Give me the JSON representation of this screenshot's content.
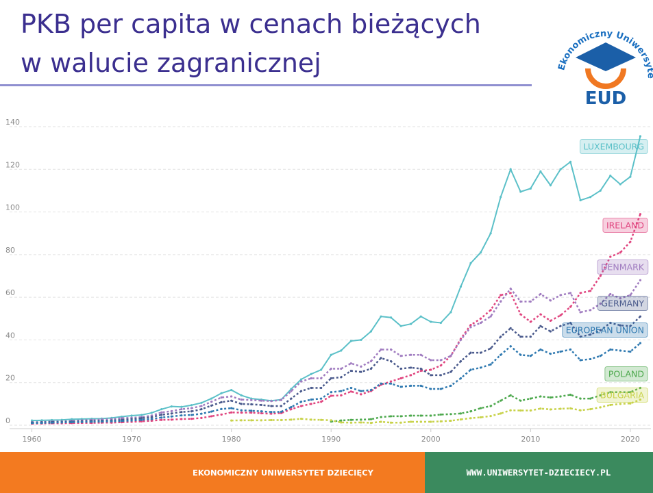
{
  "title_lines": [
    "PKB per capita w cenach bieżących",
    "w walucie zagranicznej"
  ],
  "logo": {
    "arc_text": "Ekonomiczny Uniwersytet Dziecięcy",
    "acronym": "EUD"
  },
  "footer": {
    "left": "EKONOMICZNY UNIWERSYTET DZIECIĘCY",
    "right": "WWW.UNIWERSYTET-DZIECIECY.PL"
  },
  "chart_data": {
    "type": "line",
    "x": [
      1960,
      1961,
      1962,
      1963,
      1964,
      1965,
      1966,
      1967,
      1968,
      1969,
      1970,
      1971,
      1972,
      1973,
      1974,
      1975,
      1976,
      1977,
      1978,
      1979,
      1980,
      1981,
      1982,
      1983,
      1984,
      1985,
      1986,
      1987,
      1988,
      1989,
      1990,
      1991,
      1992,
      1993,
      1994,
      1995,
      1996,
      1997,
      1998,
      1999,
      2000,
      2001,
      2002,
      2003,
      2004,
      2005,
      2006,
      2007,
      2008,
      2009,
      2010,
      2011,
      2012,
      2013,
      2014,
      2015,
      2016,
      2017,
      2018,
      2019,
      2020,
      2021
    ],
    "xlim": [
      1959,
      2022
    ],
    "xticks": [
      1960,
      1970,
      1980,
      1990,
      2000,
      2010,
      2020
    ],
    "ylim": [
      0,
      140
    ],
    "yticks": [
      0,
      20,
      40,
      60,
      80,
      100,
      120,
      140
    ],
    "grid": true,
    "series": [
      {
        "name": "LUXEMBOURG",
        "color": "#5bc0c8",
        "style": "solid",
        "values": [
          2.2,
          2.3,
          2.4,
          2.5,
          2.8,
          2.9,
          3.0,
          3.1,
          3.4,
          4.0,
          4.5,
          4.8,
          5.8,
          7.5,
          8.8,
          8.6,
          9.4,
          10.5,
          12.5,
          15,
          16.5,
          14,
          12.5,
          12,
          11.5,
          12,
          17,
          21.5,
          24,
          26,
          33,
          35,
          39.5,
          40,
          44,
          51,
          50.5,
          46.5,
          47.5,
          51,
          48.5,
          48,
          53,
          65,
          76,
          81,
          90,
          107,
          120,
          109.5,
          111,
          119,
          112.5,
          120,
          123.5,
          105.5,
          107,
          110,
          117,
          113,
          116.5,
          135.5
        ]
      },
      {
        "name": "IRELAND",
        "color": "#e0457f",
        "style": "dotted",
        "values": [
          0.7,
          0.8,
          0.9,
          0.9,
          1.0,
          1.1,
          1.1,
          1.2,
          1.2,
          1.4,
          1.6,
          1.8,
          2.1,
          2.5,
          2.6,
          2.9,
          3,
          3.4,
          4.2,
          5,
          6,
          5.9,
          5.9,
          5.6,
          5.4,
          5.7,
          7.5,
          9,
          10,
          11,
          13.8,
          14,
          15.8,
          14.5,
          16,
          19,
          20.5,
          22,
          23.5,
          25.5,
          26,
          28,
          32.5,
          40.5,
          47,
          50,
          54,
          61,
          62,
          52,
          48.5,
          52,
          49,
          51.5,
          55.5,
          62,
          63,
          70,
          79,
          81,
          86,
          99
        ]
      },
      {
        "name": "DENMARK",
        "color": "#a07cc0",
        "style": "dotted",
        "values": [
          1.4,
          1.5,
          1.7,
          1.8,
          2.0,
          2.3,
          2.5,
          2.7,
          2.9,
          3.3,
          3.5,
          3.8,
          4.5,
          6,
          6.6,
          7.5,
          8,
          9,
          11,
          13,
          13.5,
          12,
          11.8,
          11.5,
          11.3,
          11.8,
          16,
          20.5,
          22,
          22,
          26.5,
          26.5,
          29,
          27.5,
          30,
          35.5,
          35.5,
          32.5,
          33,
          33,
          30.5,
          30.5,
          32.5,
          40,
          46,
          48,
          51,
          58,
          64,
          58,
          58,
          61.5,
          58.5,
          61,
          62,
          53,
          54,
          57,
          61.5,
          59.5,
          61,
          68
        ]
      },
      {
        "name": "GERMANY",
        "color": "#4a5a8c",
        "style": "dotted",
        "values": [
          1.3,
          1.4,
          1.5,
          1.6,
          1.7,
          1.9,
          2.0,
          2.1,
          2.2,
          2.5,
          2.9,
          3.3,
          3.8,
          4.9,
          5.5,
          6.2,
          6.5,
          7.5,
          9.2,
          10.8,
          11.5,
          10,
          9.8,
          9.5,
          9,
          9,
          12.5,
          16,
          17.5,
          17.5,
          22,
          22.5,
          25.5,
          25,
          26.5,
          31.5,
          30,
          26.5,
          27,
          26.5,
          23.5,
          23.5,
          25,
          30,
          34,
          34,
          36,
          41.5,
          45.5,
          41.5,
          41.5,
          46.5,
          44,
          46.5,
          48,
          41.5,
          42.5,
          44.5,
          48,
          46.8,
          46.5,
          51
        ]
      },
      {
        "name": "EUROPEAN UNION",
        "color": "#2f79b0",
        "style": "dotted",
        "values": [
          1.0,
          1.1,
          1.2,
          1.3,
          1.4,
          1.5,
          1.6,
          1.7,
          1.8,
          2.0,
          2.2,
          2.5,
          2.9,
          3.6,
          4.1,
          4.6,
          4.8,
          5.4,
          6.4,
          7.6,
          8,
          7,
          6.8,
          6.5,
          6.2,
          6.3,
          8.5,
          11,
          12,
          12.5,
          15.5,
          16,
          17.5,
          16,
          16.5,
          19.5,
          19.5,
          18,
          18.5,
          18.5,
          17,
          17,
          18.5,
          22,
          26,
          27,
          28.5,
          33,
          37,
          33,
          32.5,
          35.5,
          33.5,
          34.5,
          35.5,
          30.5,
          31,
          32.5,
          35.5,
          35,
          34.5,
          38.5
        ]
      },
      {
        "name": "POLAND",
        "color": "#4ca84c",
        "style": "dotted",
        "values": [
          null,
          null,
          null,
          null,
          null,
          null,
          null,
          null,
          null,
          null,
          null,
          null,
          null,
          null,
          null,
          null,
          null,
          null,
          null,
          null,
          null,
          null,
          null,
          null,
          null,
          null,
          null,
          null,
          null,
          null,
          1.7,
          2.2,
          2.5,
          2.6,
          2.8,
          3.8,
          4.2,
          4.2,
          4.5,
          4.5,
          4.5,
          5,
          5.2,
          5.5,
          6.5,
          8,
          9,
          11.5,
          14,
          11.5,
          12.5,
          13.5,
          13,
          13.5,
          14.3,
          12.5,
          12.5,
          14,
          15.5,
          15.5,
          15.5,
          17.5
        ]
      },
      {
        "name": "BULGARIA",
        "color": "#c8d24a",
        "style": "dotted",
        "values": [
          null,
          null,
          null,
          null,
          null,
          null,
          null,
          null,
          null,
          null,
          null,
          null,
          null,
          null,
          null,
          null,
          null,
          null,
          null,
          null,
          2.2,
          2.3,
          2.3,
          2.3,
          2.4,
          2.4,
          2.6,
          3.0,
          2.6,
          2.5,
          2.3,
          1.3,
          1.2,
          1.3,
          1.1,
          1.6,
          1.2,
          1.2,
          1.6,
          1.6,
          1.6,
          1.8,
          2.1,
          2.7,
          3.3,
          3.7,
          4.3,
          5.5,
          7,
          6.9,
          6.9,
          7.8,
          7.4,
          7.7,
          7.9,
          7,
          7.5,
          8.4,
          9.5,
          10,
          10.2,
          12
        ]
      }
    ]
  }
}
